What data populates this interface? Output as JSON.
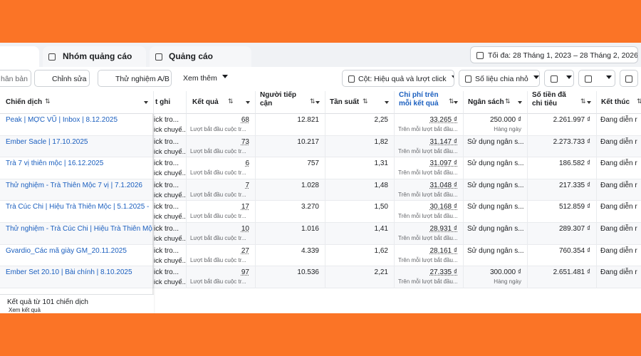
{
  "tabs": [
    "Nhóm quảng cáo",
    "Quảng cáo"
  ],
  "date_range": "Tối đa: 28 Tháng 1, 2023 – 28 Tháng 2, 2026",
  "toolbar": {
    "duplicate": "hân bản",
    "edit": "Chỉnh sửa",
    "ab_test": "Thử nghiệm A/B",
    "more": "Xem thêm",
    "columns": "Cột: Hiệu quả và lượt click",
    "breakdown": "Số liệu chia nhỏ"
  },
  "table": {
    "columns": [
      "Chiến dịch",
      "t ghi",
      "Kết quả",
      "Người tiếp cận",
      "Tần suất",
      "Chi phí trên mỗi kết quả",
      "Ngân sách",
      "Số tiền đã chi tiêu",
      "Kết thúc"
    ],
    "rows": [
      {
        "campaign": "Peak | MỢC VŨ | Inbox | 8.12.2025",
        "attribution": [
          "ick tro...",
          "ick chuyể..."
        ],
        "results": "68",
        "results_type": "Lượt bắt đầu cuộc tr...",
        "reach": "12.821",
        "frequency": "2,25",
        "cost_per_result": "33.265 ₫",
        "cost_per_result_type": "Trên mỗi lượt bắt đầu...",
        "budget": "250.000 ₫",
        "budget_type": "Hàng ngày",
        "amount_spent": "2.261.997 ₫",
        "ends": "Đang diễn r"
      },
      {
        "campaign": "Ember Sacle | 17.10.2025",
        "attribution": [
          "ick tro...",
          "ick chuyể..."
        ],
        "results": "73",
        "results_type": "Lượt bắt đầu cuộc tr...",
        "reach": "10.217",
        "frequency": "1,82",
        "cost_per_result": "31.147 ₫",
        "cost_per_result_type": "Trên mỗi lượt bắt đầu...",
        "budget": "Sử dụng ngân s...",
        "amount_spent": "2.273.733 ₫",
        "ends": "Đang diễn r"
      },
      {
        "campaign": "Trà 7 vị thiên mộc | 16.12.2025",
        "attribution": [
          "ick tro...",
          "ick chuyể..."
        ],
        "results": "6",
        "results_type": "Lượt bắt đầu cuộc tr...",
        "reach": "757",
        "frequency": "1,31",
        "cost_per_result": "31.097 ₫",
        "cost_per_result_type": "Trên mỗi lượt bắt đầu...",
        "budget": "Sử dụng ngân s...",
        "amount_spent": "186.582 ₫",
        "ends": "Đang diễn r"
      },
      {
        "campaign": "Thử nghiệm - Trà Thiên Mộc 7 vị | 7.1.2026",
        "attribution": [
          "ick tro...",
          "ick chuyể..."
        ],
        "results": "7",
        "results_type": "Lượt bắt đầu cuộc tr...",
        "reach": "1.028",
        "frequency": "1,48",
        "cost_per_result": "31.048 ₫",
        "cost_per_result_type": "Trên mỗi lượt bắt đầu...",
        "budget": "Sử dụng ngân s...",
        "amount_spent": "217.335 ₫",
        "ends": "Đang diễn r"
      },
      {
        "campaign": "Trà Cúc Chi | Hiệu Trà Thiên Mộc | 5.1.2025 -",
        "attribution": [
          "ick tro...",
          "ick chuyể..."
        ],
        "results": "17",
        "results_type": "Lượt bắt đầu cuộc tr...",
        "reach": "3.270",
        "frequency": "1,50",
        "cost_per_result": "30.168 ₫",
        "cost_per_result_type": "Trên mỗi lượt bắt đầu...",
        "budget": "Sử dụng ngân s...",
        "amount_spent": "512.859 ₫",
        "ends": "Đang diễn r"
      },
      {
        "campaign": "Thử nghiệm - Trà Cúc Chi | Hiệu Trà Thiên Mộ...",
        "attribution": [
          "ick tro...",
          "ick chuyể..."
        ],
        "results": "10",
        "results_type": "Lượt bắt đầu cuộc tr...",
        "reach": "1.016",
        "frequency": "1,41",
        "cost_per_result": "28.931 ₫",
        "cost_per_result_type": "Trên mỗi lượt bắt đầu...",
        "budget": "Sử dụng ngân s...",
        "amount_spent": "289.307 ₫",
        "ends": "Đang diễn r"
      },
      {
        "campaign": "Gvardio_Các mã giày GM_20.11.2025",
        "attribution": [
          "ick tro...",
          "ick chuyể..."
        ],
        "results": "27",
        "results_type": "Lượt bắt đầu cuộc tr...",
        "reach": "4.339",
        "frequency": "1,62",
        "cost_per_result": "28.161 ₫",
        "cost_per_result_type": "Trên mỗi lượt bắt đầu...",
        "budget": "Sử dụng ngân s...",
        "amount_spent": "760.354 ₫",
        "ends": "Đang diễn r"
      },
      {
        "campaign": "Ember Set 20.10 | Bài chính | 8.10.2025",
        "attribution": [
          "ick tro...",
          "ick chuyể..."
        ],
        "results": "97",
        "results_type": "Lượt bắt đầu cuộc tr...",
        "reach": "10.536",
        "frequency": "2,21",
        "cost_per_result": "27.335 ₫",
        "cost_per_result_type": "Trên mỗi lượt bắt đầu...",
        "budget": "300.000 ₫",
        "budget_type": "Hàng ngày",
        "amount_spent": "2.651.481 ₫",
        "ends": "Đang diễn r"
      }
    ]
  },
  "footer": {
    "summary": "Kết quả từ 101 chiến dịch",
    "link": "Xem kết quả"
  }
}
